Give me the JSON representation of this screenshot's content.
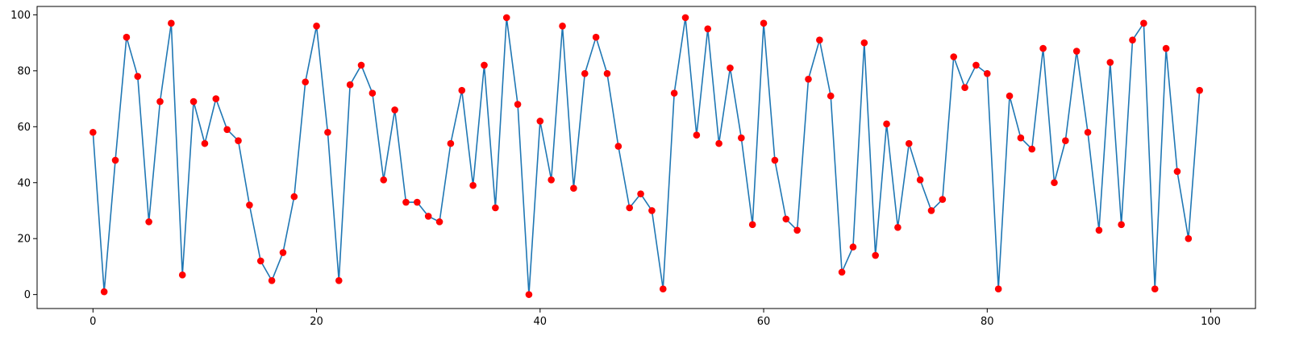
{
  "chart_data": {
    "type": "line",
    "title": "",
    "xlabel": "",
    "ylabel": "",
    "xlim": [
      -5,
      104
    ],
    "ylim": [
      -5,
      103
    ],
    "grid": false,
    "x_ticks": [
      0,
      20,
      40,
      60,
      80,
      100
    ],
    "y_ticks": [
      0,
      20,
      40,
      60,
      80,
      100
    ],
    "x_tick_labels": [
      "0",
      "20",
      "40",
      "60",
      "80",
      "100"
    ],
    "y_tick_labels": [
      "0",
      "20",
      "40",
      "60",
      "80",
      "100"
    ],
    "line_color": "#1f77b4",
    "marker_color": "#ff0000",
    "x": [
      0,
      1,
      2,
      3,
      4,
      5,
      6,
      7,
      8,
      9,
      10,
      11,
      12,
      13,
      14,
      15,
      16,
      17,
      18,
      19,
      20,
      21,
      22,
      23,
      24,
      25,
      26,
      27,
      28,
      29,
      30,
      31,
      32,
      33,
      34,
      35,
      36,
      37,
      38,
      39,
      40,
      41,
      42,
      43,
      44,
      45,
      46,
      47,
      48,
      49,
      50,
      51,
      52,
      53,
      54,
      55,
      56,
      57,
      58,
      59,
      60,
      61,
      62,
      63,
      64,
      65,
      66,
      67,
      68,
      69,
      70,
      71,
      72,
      73,
      74,
      75,
      76,
      77,
      78,
      79,
      80,
      81,
      82,
      83,
      84,
      85,
      86,
      87,
      88,
      89,
      90,
      91,
      92,
      93,
      94,
      95,
      96,
      97,
      98,
      99
    ],
    "values": [
      58,
      1,
      48,
      92,
      78,
      26,
      69,
      97,
      7,
      69,
      54,
      70,
      59,
      55,
      32,
      12,
      5,
      15,
      35,
      76,
      96,
      58,
      5,
      75,
      82,
      72,
      41,
      66,
      33,
      33,
      28,
      26,
      54,
      73,
      39,
      82,
      31,
      99,
      68,
      0,
      62,
      41,
      96,
      38,
      79,
      92,
      79,
      53,
      31,
      36,
      30,
      2,
      72,
      99,
      57,
      95,
      54,
      81,
      56,
      25,
      97,
      48,
      27,
      23,
      77,
      91,
      71,
      8,
      17,
      90,
      14,
      61,
      24,
      54,
      41,
      30,
      34,
      85,
      74,
      82,
      79,
      2,
      71,
      56,
      52,
      88,
      40,
      55,
      87,
      58,
      23,
      83,
      25,
      91,
      97,
      2,
      88,
      44,
      20,
      73
    ]
  }
}
